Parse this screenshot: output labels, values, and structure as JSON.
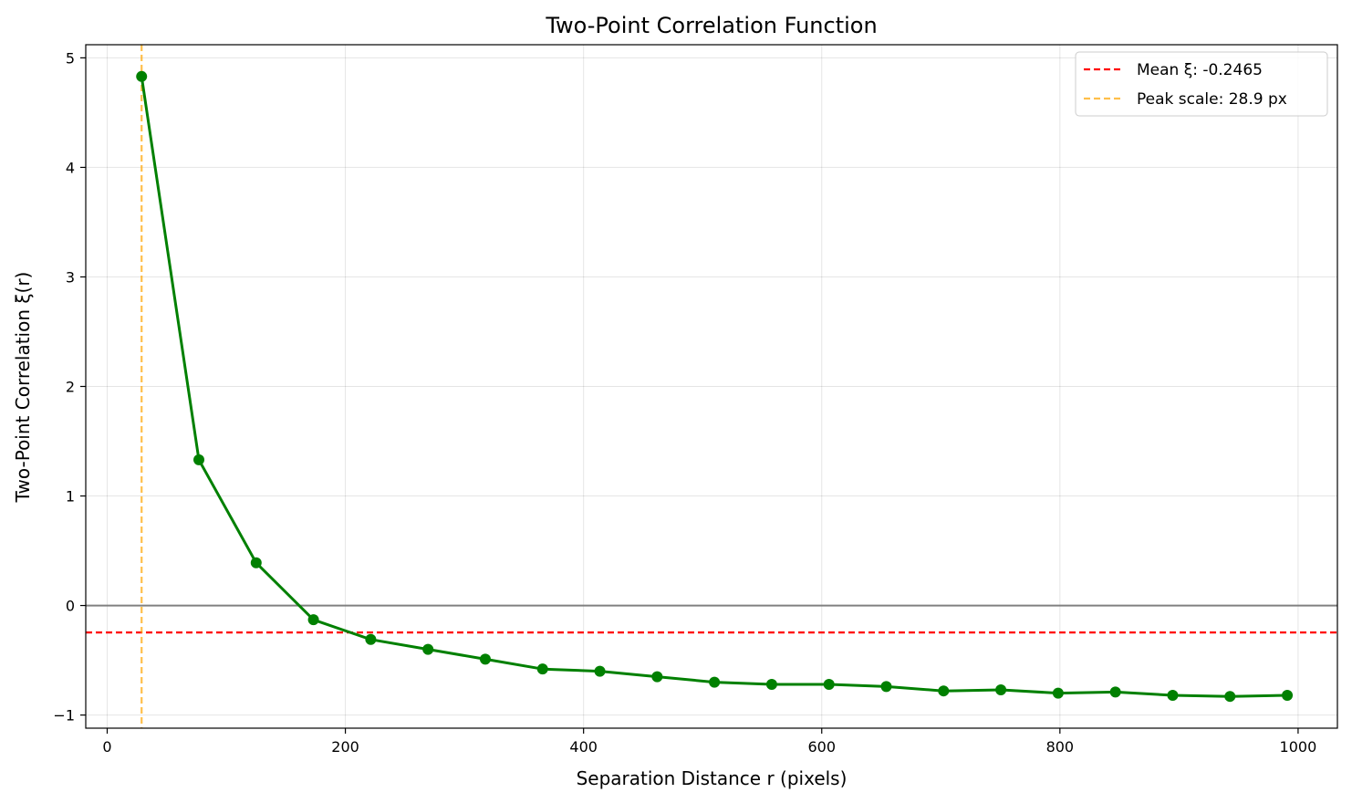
{
  "chart_data": {
    "type": "line",
    "title": "Two-Point Correlation Function",
    "xlabel": "Separation Distance r (pixels)",
    "ylabel": "Two-Point Correlation ξ(r)",
    "xlim": [
      -18,
      1033
    ],
    "ylim": [
      -1.12,
      5.12
    ],
    "xticks": [
      0,
      200,
      400,
      600,
      800,
      1000
    ],
    "yticks": [
      -1,
      0,
      1,
      2,
      3,
      4,
      5
    ],
    "xtick_labels": [
      "0",
      "200",
      "400",
      "600",
      "800",
      "1000"
    ],
    "ytick_labels": [
      "−1",
      "0",
      "1",
      "2",
      "3",
      "4",
      "5"
    ],
    "grid": true,
    "legend_position": "top-right",
    "series": [
      {
        "color": "#008000",
        "marker": "circle",
        "x": [
          28.9,
          77.0,
          125.1,
          173.2,
          221.3,
          269.4,
          317.5,
          365.6,
          413.7,
          461.8,
          509.9,
          558.0,
          606.1,
          654.2,
          702.3,
          750.4,
          798.5,
          846.6,
          894.7,
          942.8,
          990.9
        ],
        "y": [
          4.83,
          1.33,
          0.39,
          -0.13,
          -0.31,
          -0.4,
          -0.49,
          -0.58,
          -0.6,
          -0.65,
          -0.7,
          -0.72,
          -0.72,
          -0.74,
          -0.78,
          -0.77,
          -0.8,
          -0.79,
          -0.82,
          -0.83,
          -0.82
        ]
      }
    ],
    "reference_lines": [
      {
        "orientation": "horizontal",
        "value": 0,
        "color": "#808080",
        "style": "solid"
      },
      {
        "orientation": "horizontal",
        "value": -0.2465,
        "color": "#ff0000",
        "style": "dashed",
        "label": "Mean ξ: -0.2465"
      },
      {
        "orientation": "vertical",
        "value": 28.9,
        "color": "#ffa500",
        "style": "dashed",
        "label": "Peak scale: 28.9 px"
      }
    ]
  }
}
